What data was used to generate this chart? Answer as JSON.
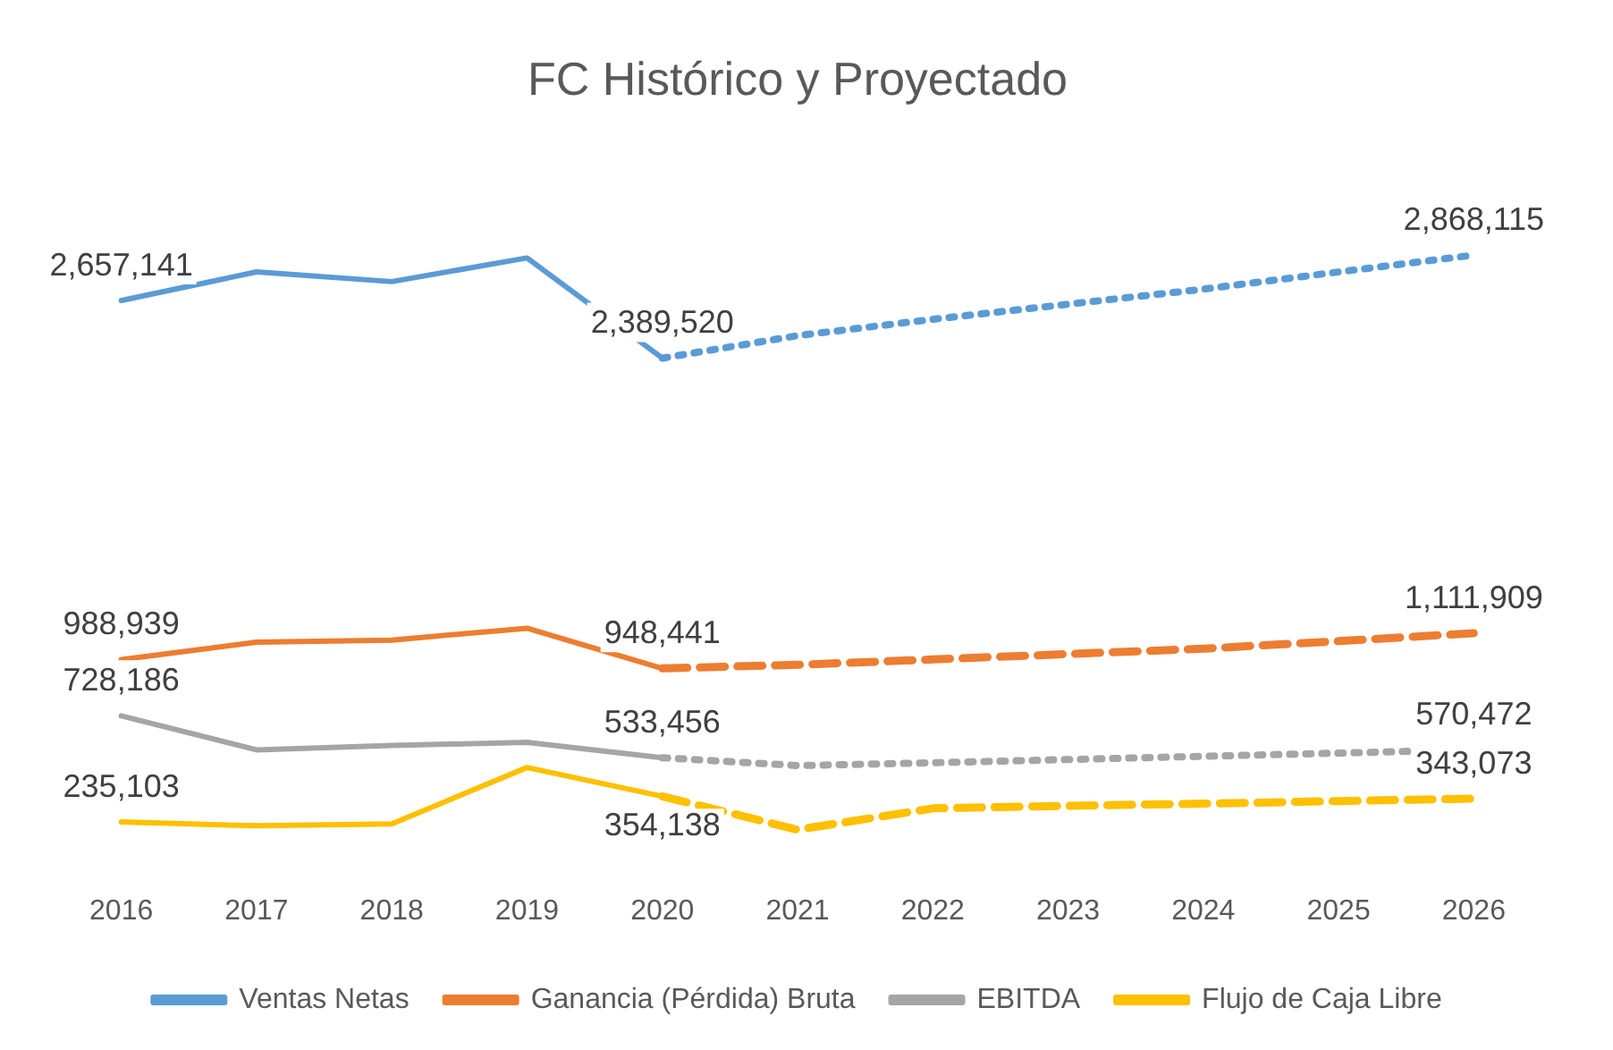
{
  "chart_data": {
    "type": "line",
    "title": "FC Histórico y Proyectado",
    "categories": [
      "2016",
      "2017",
      "2018",
      "2019",
      "2020",
      "2021",
      "2022",
      "2023",
      "2024",
      "2025",
      "2026"
    ],
    "series": [
      {
        "name": "Ventas Netas",
        "color": "#5b9bd5",
        "line_style": "solid",
        "values": [
          2657141,
          2790000,
          2745000,
          2855000,
          2389520,
          null,
          null,
          null,
          null,
          null,
          null
        ],
        "value_labels": [
          "2,657,141",
          null,
          null,
          null,
          "2,389,520",
          null,
          null,
          null,
          null,
          null,
          null
        ]
      },
      {
        "color": "#5b9bd5",
        "line_style": "dotted",
        "values": [
          null,
          null,
          null,
          null,
          2389520,
          2494000,
          2570000,
          2640000,
          2710000,
          2790000,
          2868115
        ],
        "value_labels": [
          null,
          null,
          null,
          null,
          null,
          null,
          null,
          null,
          null,
          null,
          "2,868,115"
        ]
      },
      {
        "name": "Ganancia (Pérdida) Bruta",
        "color": "#ed7d31",
        "line_style": "solid",
        "values": [
          988939,
          1070000,
          1080000,
          1135000,
          948441,
          null,
          null,
          null,
          null,
          null,
          null
        ],
        "value_labels": [
          "988,939",
          null,
          null,
          null,
          "948,441",
          null,
          null,
          null,
          null,
          null,
          null
        ]
      },
      {
        "color": "#ed7d31",
        "line_style": "dashed",
        "values": [
          null,
          null,
          null,
          null,
          948441,
          965000,
          990000,
          1015000,
          1040000,
          1075000,
          1111909
        ],
        "value_labels": [
          null,
          null,
          null,
          null,
          null,
          null,
          null,
          null,
          null,
          null,
          "1,111,909"
        ]
      },
      {
        "name": "EBITDA",
        "color": "#a5a5a5",
        "line_style": "solid",
        "values": [
          728186,
          570000,
          590000,
          605000,
          533456,
          null,
          null,
          null,
          null,
          null,
          null
        ],
        "value_labels": [
          "728,186",
          null,
          null,
          null,
          "533,456",
          null,
          null,
          null,
          null,
          null,
          null
        ]
      },
      {
        "color": "#a5a5a5",
        "line_style": "dotted",
        "values": [
          null,
          null,
          null,
          null,
          533456,
          497000,
          510000,
          525000,
          540000,
          555000,
          570472
        ],
        "value_labels": [
          null,
          null,
          null,
          null,
          null,
          null,
          null,
          null,
          null,
          null,
          "570,472"
        ]
      },
      {
        "name": "Flujo de Caja Libre",
        "color": "#ffc000",
        "line_style": "solid",
        "values": [
          235103,
          217000,
          226000,
          488000,
          354138,
          null,
          null,
          null,
          null,
          null,
          null
        ],
        "value_labels": [
          "235,103",
          null,
          null,
          null,
          "354,138",
          null,
          null,
          null,
          null,
          null,
          null
        ]
      },
      {
        "color": "#ffc000",
        "line_style": "dashed",
        "values": [
          null,
          null,
          null,
          null,
          354138,
          199000,
          298000,
          310000,
          320000,
          332000,
          343073
        ],
        "value_labels": [
          null,
          null,
          null,
          null,
          null,
          null,
          null,
          null,
          null,
          null,
          "343,073"
        ]
      }
    ],
    "marker": "none",
    "grid": false,
    "legend": "bottom"
  }
}
